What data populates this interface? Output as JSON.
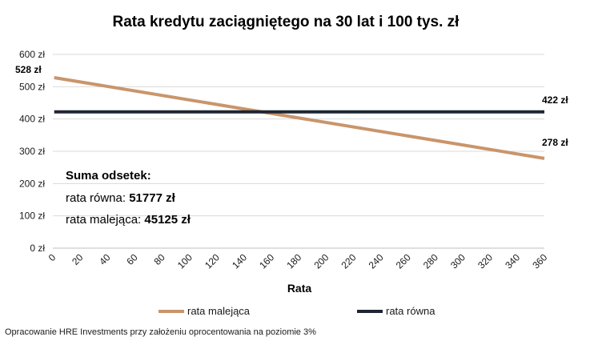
{
  "chart_data": {
    "type": "line",
    "title": "Rata kredytu zaciągniętego na 30 lat i 100 tys. zł",
    "xlabel": "Rata",
    "ylabel": "",
    "xlim": [
      0,
      360
    ],
    "ylim": [
      0,
      600
    ],
    "x_ticks": [
      "0",
      "20",
      "40",
      "60",
      "80",
      "100",
      "120",
      "140",
      "160",
      "180",
      "200",
      "220",
      "240",
      "260",
      "280",
      "300",
      "320",
      "340",
      "360"
    ],
    "y_ticks": [
      "0 zł",
      "100 zł",
      "200 zł",
      "300 zł",
      "400 zł",
      "500 zł",
      "600 zł"
    ],
    "y_tick_values": [
      0,
      100,
      200,
      300,
      400,
      500,
      600
    ],
    "grid": true,
    "legend_position": "bottom",
    "series": [
      {
        "name": "rata malejąca",
        "color": "#c9956b",
        "x": [
          1,
          360
        ],
        "values": [
          528,
          278
        ],
        "start_label": "528 zł",
        "end_label": "278 zł"
      },
      {
        "name": "rata równa",
        "color": "#1f2533",
        "x": [
          1,
          360
        ],
        "values": [
          422,
          422
        ],
        "end_label": "422 zł"
      }
    ],
    "annotation": {
      "heading": "Suma odsetek:",
      "line1_label": "rata równa: ",
      "line1_value": "51777 zł",
      "line2_label": "rata malejąca: ",
      "line2_value": "45125 zł"
    }
  },
  "caption": "Opracowanie HRE Investments przy założeniu oprocentowania na poziomie 3%"
}
